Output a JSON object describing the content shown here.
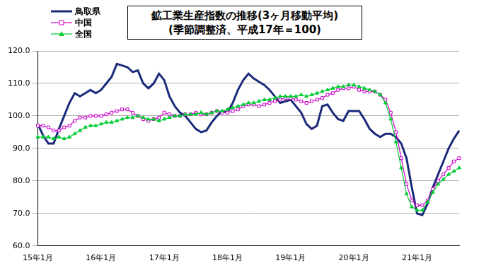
{
  "chart_data": {
    "type": "line",
    "title": "鉱工業生産指数の推移(3ヶ月移動平均)",
    "subtitle": "(季節調整済、平成17年＝100)",
    "categories": [
      "15年1月",
      null,
      null,
      null,
      null,
      null,
      null,
      null,
      null,
      null,
      null,
      null,
      "16年1月",
      null,
      null,
      null,
      null,
      null,
      null,
      null,
      null,
      null,
      null,
      null,
      "17年1月",
      null,
      null,
      null,
      null,
      null,
      null,
      null,
      null,
      null,
      null,
      null,
      "18年1月",
      null,
      null,
      null,
      null,
      null,
      null,
      null,
      null,
      null,
      null,
      null,
      "19年1月",
      null,
      null,
      null,
      null,
      null,
      null,
      null,
      null,
      null,
      null,
      null,
      "20年1月",
      null,
      null,
      null,
      null,
      null,
      null,
      null,
      null,
      null,
      null,
      null,
      "21年1月",
      null,
      null,
      null,
      null,
      null,
      null,
      null,
      null
    ],
    "series": [
      {
        "name": "鳥取県",
        "color": "#1c2a7a",
        "marker": "none",
        "line_style": "solid",
        "values": [
          97.5,
          94,
          91.5,
          91.5,
          96,
          100,
          104,
          107,
          106,
          107,
          108,
          107,
          108,
          110,
          112,
          116,
          115.5,
          115,
          113.5,
          114,
          110,
          108.5,
          110,
          113,
          111,
          106,
          103,
          101,
          100,
          98,
          96,
          95,
          95.5,
          98,
          100,
          101.5,
          101,
          104,
          108,
          111,
          113,
          111.5,
          110.5,
          109.5,
          108,
          106,
          104,
          104.5,
          105,
          103,
          101,
          97.5,
          96,
          97,
          103,
          103.5,
          101,
          99,
          98.5,
          101.5,
          101.5,
          101.5,
          99,
          96,
          94.5,
          93.5,
          94.5,
          94.5,
          93.5,
          91.5,
          87,
          78,
          70,
          69.5,
          73,
          78,
          82,
          86,
          90,
          93,
          95.5
        ]
      },
      {
        "name": "中国",
        "color": "#cc00cc",
        "marker": "square",
        "line_style": "solid",
        "values": [
          97,
          97,
          96.5,
          95.5,
          95.5,
          96.5,
          97,
          98.5,
          99.5,
          99.5,
          100,
          100,
          100,
          100.5,
          101,
          101.5,
          102,
          102,
          101,
          100,
          99,
          98.5,
          99,
          99.5,
          101,
          100.5,
          100,
          100,
          100.5,
          100.5,
          101,
          100.5,
          100.5,
          101,
          101.5,
          101,
          101,
          101.5,
          102,
          103,
          103.5,
          103.5,
          103,
          103.5,
          104,
          104.5,
          105,
          105.5,
          105.5,
          105,
          104.5,
          104,
          104.5,
          105,
          105.5,
          106.5,
          107,
          108,
          108.5,
          108.5,
          109,
          108,
          107.5,
          107.5,
          107.5,
          106.5,
          105,
          101,
          95,
          87,
          79,
          74,
          72.5,
          72.5,
          74,
          77.5,
          80,
          82,
          84,
          86,
          87
        ]
      },
      {
        "name": "全国",
        "color": "#00cc33",
        "marker": "triangle",
        "line_style": "solid",
        "values": [
          93.5,
          93.5,
          93.5,
          93,
          93.5,
          93,
          93.5,
          94.5,
          95.5,
          96.5,
          97,
          97,
          97.5,
          98,
          98,
          98.5,
          99,
          99.5,
          99.5,
          100,
          99.5,
          99,
          99,
          98.5,
          99,
          99.5,
          100,
          100,
          100.5,
          100.5,
          100.5,
          101,
          100.5,
          101,
          101.5,
          101.5,
          102,
          102.5,
          103,
          103.5,
          104,
          104,
          104.5,
          105,
          105,
          105.5,
          106,
          106,
          106,
          106,
          106.5,
          106,
          106.5,
          107,
          107.5,
          108,
          108.5,
          109,
          109,
          109.5,
          109.5,
          109,
          108.5,
          108,
          107.5,
          106.5,
          104,
          99,
          92,
          84,
          76,
          72,
          71,
          71,
          73.5,
          76.5,
          79,
          80.5,
          82,
          83,
          84
        ]
      }
    ],
    "ylim": [
      60,
      120
    ],
    "yticks": [
      {
        "value": 60,
        "label": "60.0"
      },
      {
        "value": 70,
        "label": "70.0"
      },
      {
        "value": 80,
        "label": "80.0"
      },
      {
        "value": 90,
        "label": "90.0"
      },
      {
        "value": 100,
        "label": "100.0"
      },
      {
        "value": 110,
        "label": "110.0"
      },
      {
        "value": 120,
        "label": "120.0"
      }
    ],
    "grid": true,
    "legend": "top-left"
  }
}
